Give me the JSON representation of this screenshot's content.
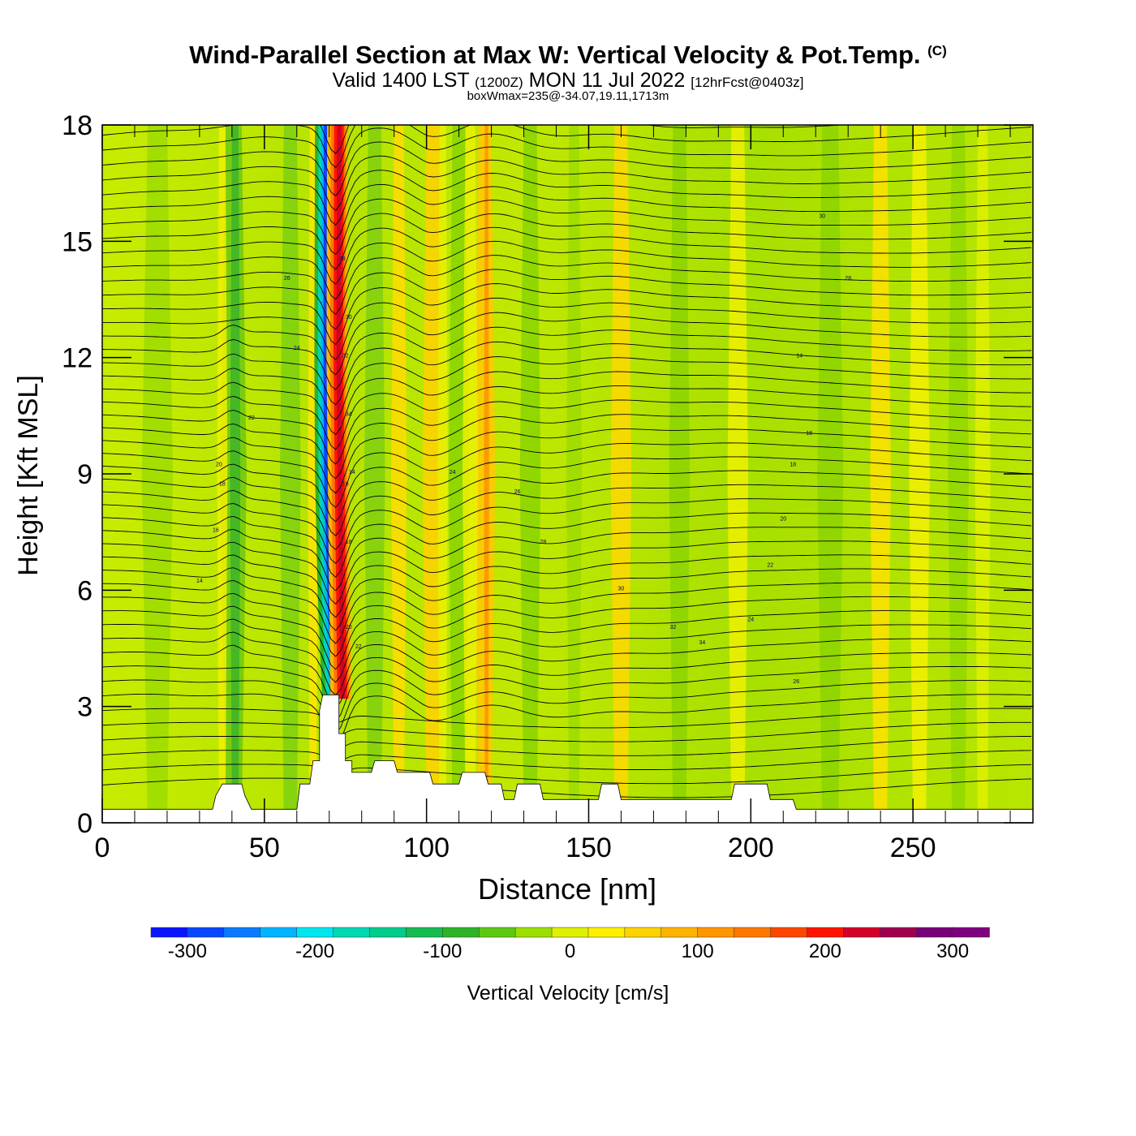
{
  "title": {
    "main": "Wind-Parallel Section at Max W: Vertical Velocity & Pot.Temp.",
    "copyright": "(C)",
    "valid_prefix": "Valid 1400 LST",
    "valid_utc": "(1200Z)",
    "valid_date": "MON 11 Jul 2022",
    "forecast": "[12hrFcst@0403z]",
    "box_wmax": "boxWmax=235@-34.07,19.11,1713m"
  },
  "colorbar": {
    "label": "Vertical Velocity [cm/s]",
    "ticks": [
      "-300",
      "-200",
      "-100",
      "0",
      "100",
      "200",
      "300"
    ],
    "colors": [
      "#0a14ff",
      "#0a46ff",
      "#0a7aff",
      "#00b4ff",
      "#00e6f0",
      "#00d8b4",
      "#00cc8c",
      "#14bc50",
      "#2cb428",
      "#5cc814",
      "#9ce000",
      "#e0f000",
      "#fff000",
      "#ffd200",
      "#ffb400",
      "#ff9600",
      "#ff7800",
      "#ff4600",
      "#ff1400",
      "#d20028",
      "#a00050",
      "#780078",
      "#7f007f"
    ]
  },
  "chart_data": {
    "type": "heatmap",
    "title": "Wind-Parallel Section at Max W: Vertical Velocity & Pot.Temp.",
    "xlabel": "Distance [nm]",
    "ylabel": "Height [Kft MSL]",
    "xlim": [
      0,
      287
    ],
    "ylim": [
      0,
      18
    ],
    "x_ticks": [
      "0",
      "50",
      "100",
      "150",
      "200",
      "250"
    ],
    "y_ticks": [
      "0",
      "3",
      "6",
      "9",
      "12",
      "15",
      "18"
    ],
    "x_tick_values": [
      0,
      50,
      100,
      150,
      200,
      250
    ],
    "y_tick_values": [
      0,
      3,
      6,
      9,
      12,
      15,
      18
    ],
    "colorbar_range": [
      -300,
      300
    ],
    "max_updraft": {
      "x_nm": 75,
      "value_cms": 235
    },
    "terrain_kft": [
      [
        0,
        0.35
      ],
      [
        34,
        0.35
      ],
      [
        35,
        0.7
      ],
      [
        37,
        1.0
      ],
      [
        43,
        1.0
      ],
      [
        44,
        0.7
      ],
      [
        46,
        0.35
      ],
      [
        60,
        0.35
      ],
      [
        61,
        1.0
      ],
      [
        64,
        1.0
      ],
      [
        65,
        1.6
      ],
      [
        67,
        1.6
      ],
      [
        67,
        2.9
      ],
      [
        68,
        3.3
      ],
      [
        73,
        3.3
      ],
      [
        73,
        2.3
      ],
      [
        75,
        2.3
      ],
      [
        75,
        1.6
      ],
      [
        77,
        1.6
      ],
      [
        77,
        1.3
      ],
      [
        83,
        1.3
      ],
      [
        84,
        1.6
      ],
      [
        90,
        1.6
      ],
      [
        91,
        1.3
      ],
      [
        101,
        1.3
      ],
      [
        102,
        1.0
      ],
      [
        110,
        1.0
      ],
      [
        111,
        1.3
      ],
      [
        118,
        1.3
      ],
      [
        119,
        1.0
      ],
      [
        123,
        1.0
      ],
      [
        124,
        0.6
      ],
      [
        127,
        0.6
      ],
      [
        128,
        1.0
      ],
      [
        135,
        1.0
      ],
      [
        136,
        0.6
      ],
      [
        153,
        0.6
      ],
      [
        154,
        1.0
      ],
      [
        159,
        1.0
      ],
      [
        160,
        0.6
      ],
      [
        194,
        0.6
      ],
      [
        195,
        1.0
      ],
      [
        205,
        1.0
      ],
      [
        206,
        0.6
      ],
      [
        213,
        0.6
      ],
      [
        214,
        0.35
      ],
      [
        287,
        0.35
      ]
    ],
    "theta_contour_labels": [
      "14",
      "16",
      "18",
      "20",
      "22",
      "24",
      "26",
      "28",
      "30",
      "32",
      "34"
    ]
  }
}
